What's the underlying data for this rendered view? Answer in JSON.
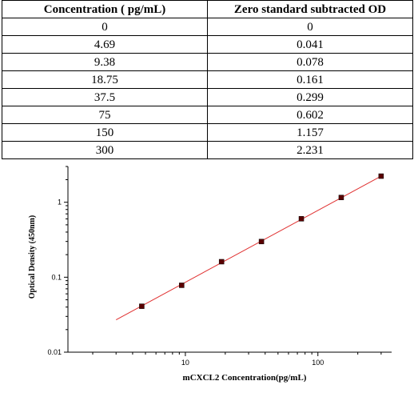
{
  "table": {
    "headers": [
      "Concentration ( pg/mL)",
      "Zero standard subtracted OD"
    ],
    "rows": [
      [
        "0",
        "0"
      ],
      [
        "4.69",
        "0.041"
      ],
      [
        "9.38",
        "0.078"
      ],
      [
        "18.75",
        "0.161"
      ],
      [
        "37.5",
        "0.299"
      ],
      [
        "75",
        "0.602"
      ],
      [
        "150",
        "1.157"
      ],
      [
        "300",
        "2.231"
      ]
    ]
  },
  "chart_data": {
    "type": "scatter",
    "x": [
      4.69,
      9.38,
      18.75,
      37.5,
      75,
      150,
      300
    ],
    "y": [
      0.041,
      0.078,
      0.161,
      0.299,
      0.602,
      1.157,
      2.231
    ],
    "fit_line": {
      "x": [
        3,
        300
      ],
      "y": [
        0.027,
        2.231
      ]
    },
    "xlabel": "mCXCL2  Concentration(pg/mL)",
    "ylabel": "Optical Density (450nm)",
    "x_scale": "log",
    "y_scale": "log",
    "xlim": [
      1.3,
      360
    ],
    "ylim": [
      0.01,
      3
    ],
    "x_ticks": [
      10,
      100
    ],
    "x_tick_labels": [
      "10",
      "100"
    ],
    "y_ticks": [
      0.01,
      0.1,
      1
    ],
    "y_tick_labels": [
      "0.01",
      "0.1",
      "1"
    ],
    "grid": false,
    "colors": {
      "line": "#e03030",
      "marker": "#5a0000"
    }
  }
}
